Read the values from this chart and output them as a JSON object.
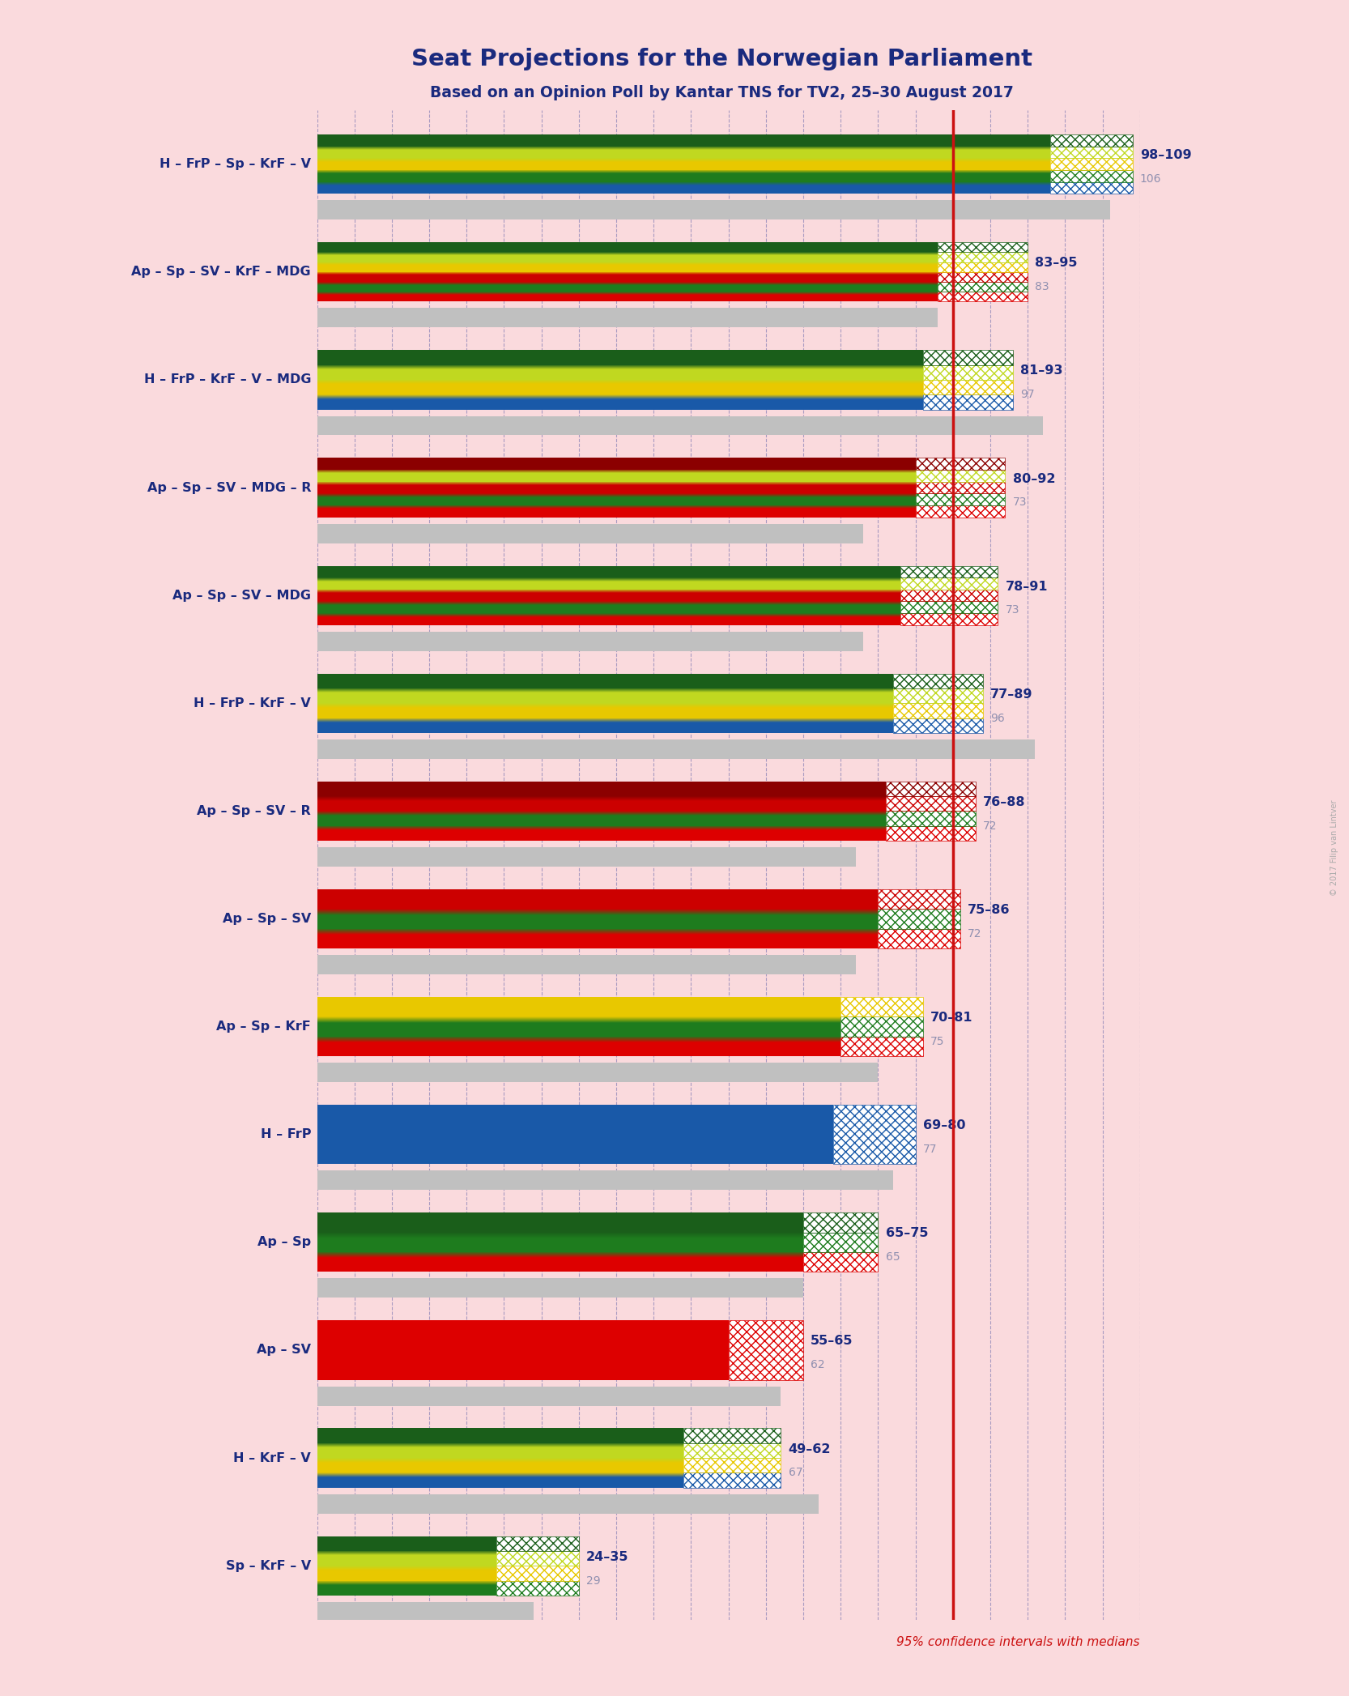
{
  "title": "Seat Projections for the Norwegian Parliament",
  "subtitle": "Based on an Opinion Poll by Kantar TNS for TV2, 25–30 August 2017",
  "copyright": "© 2017 Filip van Lintver",
  "background_color": "#FADADD",
  "majority_line": 85,
  "x_max": 110,
  "coalitions": [
    {
      "name": "H – FrP – Sp – KrF – V",
      "ci_low": 98,
      "ci_high": 109,
      "median": 106,
      "stripes": [
        "#1959a8",
        "#1e7c1e",
        "#e8c800",
        "#c0d820",
        "#1a5e1a"
      ],
      "type": "right"
    },
    {
      "name": "Ap – Sp – SV – KrF – MDG",
      "ci_low": 83,
      "ci_high": 95,
      "median": 83,
      "stripes": [
        "#dd0000",
        "#1e7c1e",
        "#cc0000",
        "#e8c800",
        "#c0d820",
        "#1a5e1a"
      ],
      "type": "left"
    },
    {
      "name": "H – FrP – KrF – V – MDG",
      "ci_low": 81,
      "ci_high": 93,
      "median": 97,
      "stripes": [
        "#1959a8",
        "#e8c800",
        "#c0d820",
        "#1a5e1a"
      ],
      "type": "right"
    },
    {
      "name": "Ap – Sp – SV – MDG – R",
      "ci_low": 80,
      "ci_high": 92,
      "median": 73,
      "stripes": [
        "#dd0000",
        "#1e7c1e",
        "#cc0000",
        "#c0d820",
        "#8B0000"
      ],
      "type": "left"
    },
    {
      "name": "Ap – Sp – SV – MDG",
      "ci_low": 78,
      "ci_high": 91,
      "median": 73,
      "stripes": [
        "#dd0000",
        "#1e7c1e",
        "#cc0000",
        "#c0d820",
        "#1a5e1a"
      ],
      "type": "left"
    },
    {
      "name": "H – FrP – KrF – V",
      "ci_low": 77,
      "ci_high": 89,
      "median": 96,
      "stripes": [
        "#1959a8",
        "#e8c800",
        "#c0d820",
        "#1a5e1a"
      ],
      "type": "right"
    },
    {
      "name": "Ap – Sp – SV – R",
      "ci_low": 76,
      "ci_high": 88,
      "median": 72,
      "stripes": [
        "#dd0000",
        "#1e7c1e",
        "#cc0000",
        "#8B0000"
      ],
      "type": "left"
    },
    {
      "name": "Ap – Sp – SV",
      "ci_low": 75,
      "ci_high": 86,
      "median": 72,
      "stripes": [
        "#dd0000",
        "#1e7c1e",
        "#cc0000"
      ],
      "type": "left"
    },
    {
      "name": "Ap – Sp – KrF",
      "ci_low": 70,
      "ci_high": 81,
      "median": 75,
      "stripes": [
        "#dd0000",
        "#1e7c1e",
        "#e8c800"
      ],
      "type": "left"
    },
    {
      "name": "H – FrP",
      "ci_low": 69,
      "ci_high": 80,
      "median": 77,
      "stripes": [
        "#1959a8"
      ],
      "type": "right"
    },
    {
      "name": "Ap – Sp",
      "ci_low": 65,
      "ci_high": 75,
      "median": 65,
      "stripes": [
        "#dd0000",
        "#1e7c1e",
        "#1a5e1a"
      ],
      "type": "left"
    },
    {
      "name": "Ap – SV",
      "ci_low": 55,
      "ci_high": 65,
      "median": 62,
      "stripes": [
        "#dd0000"
      ],
      "type": "left"
    },
    {
      "name": "H – KrF – V",
      "ci_low": 49,
      "ci_high": 62,
      "median": 67,
      "stripes": [
        "#1959a8",
        "#e8c800",
        "#c0d820",
        "#1a5e1a"
      ],
      "type": "right"
    },
    {
      "name": "Sp – KrF – V",
      "ci_low": 24,
      "ci_high": 35,
      "median": 29,
      "stripes": [
        "#1e7c1e",
        "#e8c800",
        "#c0d820",
        "#1a5e1a"
      ],
      "type": "center"
    }
  ]
}
